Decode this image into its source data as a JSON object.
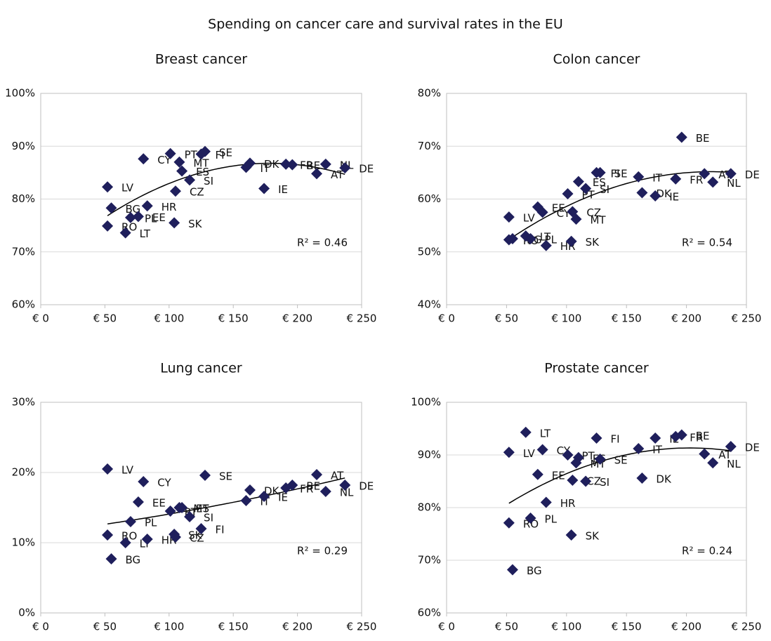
{
  "title": "Spending on cancer care and survival rates in the EU",
  "chart_data": [
    {
      "type": "scatter",
      "title": "Breast cancer",
      "color": "#1f1f5c",
      "trendline": "poly2",
      "grid": true,
      "labels": [
        "LV",
        "RO",
        "BG",
        "LT",
        "PL",
        "EE",
        "CY",
        "HR",
        "PT",
        "SK",
        "CZ",
        "MT",
        "ES",
        "SI",
        "FI",
        "SE",
        "IT",
        "DK",
        "IE",
        "FR",
        "BE",
        "AT",
        "NL",
        "DE"
      ],
      "x": [
        52,
        52,
        55,
        66,
        70,
        76,
        80,
        83,
        101,
        104,
        105,
        108,
        110,
        116,
        125,
        128,
        160,
        163,
        174,
        191,
        196,
        215,
        222,
        237
      ],
      "values": [
        82.3,
        74.9,
        78.3,
        73.6,
        76.5,
        76.7,
        87.6,
        78.7,
        88.6,
        75.5,
        81.5,
        87.0,
        85.3,
        83.6,
        88.5,
        89.0,
        86.0,
        86.8,
        82.0,
        86.6,
        86.5,
        84.8,
        86.6,
        85.9
      ],
      "xlim": [
        0,
        250
      ],
      "xticks": [
        {
          "value": 0,
          "label": "€ 0"
        },
        {
          "value": 50,
          "label": "€ 50"
        },
        {
          "value": 100,
          "label": "€ 100"
        },
        {
          "value": 150,
          "label": "€ 150"
        },
        {
          "value": 200,
          "label": "€ 200"
        },
        {
          "value": 250,
          "label": "€ 250"
        }
      ],
      "ylim": [
        60,
        100
      ],
      "yticks": [
        {
          "value": 60,
          "label": "60%"
        },
        {
          "value": 70,
          "label": "70%"
        },
        {
          "value": 80,
          "label": "80%"
        },
        {
          "value": 90,
          "label": "90%"
        },
        {
          "value": 100,
          "label": "100%"
        }
      ],
      "annotation": "R² = 0.46"
    },
    {
      "type": "scatter",
      "title": "Colon cancer",
      "color": "#1f1f5c",
      "trendline": "poly2",
      "grid": true,
      "labels": [
        "LV",
        "RO",
        "BG",
        "LT",
        "PL",
        "EE",
        "CY",
        "HR",
        "PT",
        "SK",
        "CZ",
        "MT",
        "ES",
        "SI",
        "FI",
        "SE",
        "IT",
        "DK",
        "IE",
        "FR",
        "BE",
        "AT",
        "NL",
        "DE"
      ],
      "x": [
        52,
        52,
        55,
        66,
        70,
        76,
        80,
        83,
        101,
        104,
        105,
        108,
        110,
        116,
        125,
        128,
        160,
        163,
        174,
        191,
        196,
        215,
        222,
        237
      ],
      "values": [
        56.6,
        52.3,
        52.5,
        53.0,
        52.5,
        58.5,
        57.5,
        51.2,
        61.0,
        52.0,
        57.6,
        56.2,
        63.3,
        62.0,
        65.0,
        65.0,
        64.2,
        61.2,
        60.6,
        63.8,
        71.7,
        64.8,
        63.2,
        64.8
      ],
      "xlim": [
        0,
        250
      ],
      "xticks": [
        {
          "value": 0,
          "label": "€ 0"
        },
        {
          "value": 50,
          "label": "€ 50"
        },
        {
          "value": 100,
          "label": "€ 100"
        },
        {
          "value": 150,
          "label": "€ 150"
        },
        {
          "value": 200,
          "label": "€ 200"
        },
        {
          "value": 250,
          "label": "€ 250"
        }
      ],
      "ylim": [
        40,
        80
      ],
      "yticks": [
        {
          "value": 40,
          "label": "40%"
        },
        {
          "value": 50,
          "label": "50%"
        },
        {
          "value": 60,
          "label": "60%"
        },
        {
          "value": 70,
          "label": "70%"
        },
        {
          "value": 80,
          "label": "80%"
        }
      ],
      "annotation": "R² = 0.54"
    },
    {
      "type": "scatter",
      "title": "Lung cancer",
      "color": "#1f1f5c",
      "trendline": "poly2",
      "grid": true,
      "labels": [
        "LV",
        "RO",
        "BG",
        "LT",
        "PL",
        "EE",
        "CY",
        "HR",
        "PT",
        "SK",
        "CZ",
        "MT",
        "ES",
        "SI",
        "FI",
        "SE",
        "IT",
        "DK",
        "IE",
        "FR",
        "BE",
        "AT",
        "NL",
        "DE"
      ],
      "x": [
        52,
        52,
        55,
        66,
        70,
        76,
        80,
        83,
        101,
        104,
        105,
        108,
        110,
        116,
        125,
        128,
        160,
        163,
        174,
        191,
        196,
        215,
        222,
        237
      ],
      "values": [
        20.5,
        11.1,
        7.7,
        10.0,
        13.0,
        15.8,
        18.7,
        10.5,
        14.5,
        11.2,
        10.8,
        15.0,
        15.0,
        13.7,
        12.0,
        19.6,
        16.0,
        17.5,
        16.6,
        17.8,
        18.2,
        19.7,
        17.3,
        18.2
      ],
      "xlim": [
        0,
        250
      ],
      "xticks": [
        {
          "value": 0,
          "label": "€ 0"
        },
        {
          "value": 50,
          "label": "€ 50"
        },
        {
          "value": 100,
          "label": "€ 100"
        },
        {
          "value": 150,
          "label": "€ 150"
        },
        {
          "value": 200,
          "label": "€ 200"
        },
        {
          "value": 250,
          "label": "€ 250"
        }
      ],
      "ylim": [
        0,
        30
      ],
      "yticks": [
        {
          "value": 0,
          "label": "0%"
        },
        {
          "value": 10,
          "label": "10%"
        },
        {
          "value": 20,
          "label": "20%"
        },
        {
          "value": 30,
          "label": "30%"
        }
      ],
      "annotation": "R² = 0.29"
    },
    {
      "type": "scatter",
      "title": "Prostate cancer",
      "color": "#1f1f5c",
      "trendline": "poly2",
      "grid": true,
      "labels": [
        "LV",
        "RO",
        "BG",
        "LT",
        "PL",
        "EE",
        "CY",
        "HR",
        "PT",
        "SK",
        "CZ",
        "MT",
        "ES",
        "SI",
        "FI",
        "SE",
        "IT",
        "DK",
        "IE",
        "FR",
        "BE",
        "AT",
        "NL",
        "DE"
      ],
      "x": [
        52,
        52,
        55,
        66,
        70,
        76,
        80,
        83,
        101,
        104,
        105,
        108,
        110,
        116,
        125,
        128,
        160,
        163,
        174,
        191,
        196,
        215,
        222,
        237
      ],
      "values": [
        90.5,
        77.1,
        68.2,
        94.3,
        78.0,
        86.3,
        91.0,
        81.0,
        90.0,
        74.8,
        85.2,
        88.5,
        89.5,
        85.0,
        93.2,
        89.2,
        91.2,
        85.6,
        93.2,
        93.5,
        93.8,
        90.2,
        88.5,
        91.6
      ],
      "xlim": [
        0,
        250
      ],
      "xticks": [
        {
          "value": 0,
          "label": "€ 0"
        },
        {
          "value": 50,
          "label": "€ 50"
        },
        {
          "value": 100,
          "label": "€ 100"
        },
        {
          "value": 150,
          "label": "€ 150"
        },
        {
          "value": 200,
          "label": "€ 200"
        },
        {
          "value": 250,
          "label": "€ 250"
        }
      ],
      "ylim": [
        60,
        100
      ],
      "yticks": [
        {
          "value": 60,
          "label": "60%"
        },
        {
          "value": 70,
          "label": "70%"
        },
        {
          "value": 80,
          "label": "80%"
        },
        {
          "value": 90,
          "label": "90%"
        },
        {
          "value": 100,
          "label": "100%"
        }
      ],
      "annotation": "R² = 0.24"
    }
  ]
}
